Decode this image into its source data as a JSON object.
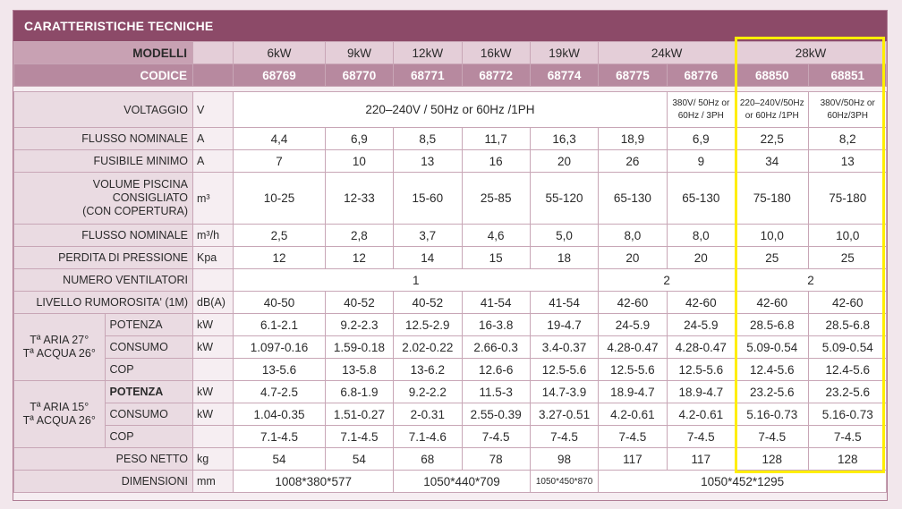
{
  "title": "CARATTERISTICHE TECNICHE",
  "header": {
    "models_label": "MODELLI",
    "code_label": "CODICE",
    "models": [
      "6kW",
      "9kW",
      "12kW",
      "16kW",
      "19kW",
      "24kW",
      "28kW"
    ],
    "codes": [
      "68769",
      "68770",
      "68771",
      "68772",
      "68774",
      "68775",
      "68776",
      "68850",
      "68851"
    ]
  },
  "rows": {
    "voltaggio": {
      "label": "VOLTAGGIO",
      "unit": "V",
      "main": "220–240V / 50Hz or 60Hz /1PH",
      "c6": "380V/ 50Hz or 60Hz / 3PH",
      "c7": "220–240V/50Hz or 60Hz /1PH",
      "c8": "380V/50Hz or 60Hz/3PH"
    },
    "flusso": {
      "label": "FLUSSO NOMINALE",
      "unit": "A",
      "values": [
        "4,4",
        "6,9",
        "8,5",
        "11,7",
        "16,3",
        "18,9",
        "6,9",
        "22,5",
        "8,2"
      ]
    },
    "fusibile": {
      "label": "FUSIBILE MINIMO",
      "unit": "A",
      "values": [
        "7",
        "10",
        "13",
        "16",
        "20",
        "26",
        "9",
        "34",
        "13"
      ]
    },
    "volume": {
      "label_line1": "VOLUME PISCINA",
      "label_line2": "CONSIGLIATO",
      "label_line3": "(CON COPERTURA)",
      "unit": "m³",
      "values": [
        "10-25",
        "12-33",
        "15-60",
        "25-85",
        "55-120",
        "65-130",
        "65-130",
        "75-180",
        "75-180"
      ]
    },
    "flusso_m3": {
      "label": "FLUSSO NOMINALE",
      "unit": "m³/h",
      "values": [
        "2,5",
        "2,8",
        "3,7",
        "4,6",
        "5,0",
        "8,0",
        "8,0",
        "10,0",
        "10,0"
      ]
    },
    "perdita": {
      "label": "PERDITA DI PRESSIONE",
      "unit": "Kpa",
      "values": [
        "12",
        "12",
        "14",
        "15",
        "18",
        "20",
        "20",
        "25",
        "25"
      ]
    },
    "ventilatori": {
      "label": "NUMERO VENTILATORI",
      "v1": "1",
      "v2": "2",
      "v3": "2"
    },
    "rumore": {
      "label": "LIVELLO RUMOROSITA' (1M)",
      "unit": "dB(A)",
      "values": [
        "40-50",
        "40-52",
        "40-52",
        "41-54",
        "41-54",
        "42-60",
        "42-60",
        "42-60",
        "42-60"
      ]
    },
    "g1": {
      "label_line1": "Tª ARIA 27°",
      "label_line2": "Tª ACQUA 26°",
      "potenza": {
        "label": "POTENZA",
        "unit": "kW",
        "values": [
          "6.1-2.1",
          "9.2-2.3",
          "12.5-2.9",
          "16-3.8",
          "19-4.7",
          "24-5.9",
          "24-5.9",
          "28.5-6.8",
          "28.5-6.8"
        ]
      },
      "consumo": {
        "label": "CONSUMO",
        "unit": "kW",
        "values": [
          "1.097-0.16",
          "1.59-0.18",
          "2.02-0.22",
          "2.66-0.3",
          "3.4-0.37",
          "4.28-0.47",
          "4.28-0.47",
          "5.09-0.54",
          "5.09-0.54"
        ]
      },
      "cop": {
        "label": "COP",
        "unit": "",
        "values": [
          "13-5.6",
          "13-5.8",
          "13-6.2",
          "12.6-6",
          "12.5-5.6",
          "12.5-5.6",
          "12.5-5.6",
          "12.4-5.6",
          "12.4-5.6"
        ]
      }
    },
    "g2": {
      "label_line1": "Tª ARIA 15°",
      "label_line2": "Tª ACQUA 26°",
      "potenza": {
        "label": "POTENZA",
        "unit": "kW",
        "values": [
          "4.7-2.5",
          "6.8-1.9",
          "9.2-2.2",
          "11.5-3",
          "14.7-3.9",
          "18.9-4.7",
          "18.9-4.7",
          "23.2-5.6",
          "23.2-5.6"
        ]
      },
      "consumo": {
        "label": "CONSUMO",
        "unit": "kW",
        "values": [
          "1.04-0.35",
          "1.51-0.27",
          "2-0.31",
          "2.55-0.39",
          "3.27-0.51",
          "4.2-0.61",
          "4.2-0.61",
          "5.16-0.73",
          "5.16-0.73"
        ]
      },
      "cop": {
        "label": "COP",
        "unit": "",
        "values": [
          "7.1-4.5",
          "7.1-4.5",
          "7.1-4.6",
          "7-4.5",
          "7-4.5",
          "7-4.5",
          "7-4.5",
          "7-4.5",
          "7-4.5"
        ]
      }
    },
    "peso": {
      "label": "PESO NETTO",
      "unit": "kg",
      "values": [
        "54",
        "54",
        "68",
        "78",
        "98",
        "117",
        "117",
        "128",
        "128"
      ]
    },
    "dimensioni": {
      "label": "DIMENSIONI",
      "unit": "mm",
      "d1": "1008*380*577",
      "d2": "1050*440*709",
      "d3": "1050*450*870",
      "d4": "1050*452*1295"
    }
  },
  "highlight_color": "#ffee00",
  "accent_color": "#8c4a68"
}
